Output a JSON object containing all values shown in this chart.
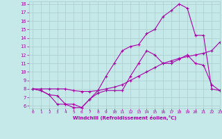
{
  "xlabel": "Windchill (Refroidissement éolien,°C)",
  "bg_color": "#c5e8e8",
  "grid_color": "#aacccc",
  "line_color": "#aa00aa",
  "xlim": [
    -0.5,
    23
  ],
  "ylim": [
    5.7,
    18.3
  ],
  "yticks": [
    6,
    7,
    8,
    9,
    10,
    11,
    12,
    13,
    14,
    15,
    16,
    17,
    18
  ],
  "xticks": [
    0,
    1,
    2,
    3,
    4,
    5,
    6,
    7,
    8,
    9,
    10,
    11,
    12,
    13,
    14,
    15,
    16,
    17,
    18,
    19,
    20,
    21,
    22,
    23
  ],
  "line1_x": [
    0,
    1,
    2,
    3,
    4,
    5,
    6,
    7,
    8,
    9,
    10,
    11,
    12,
    13,
    14,
    15,
    16,
    17,
    18,
    19,
    20,
    21,
    22,
    23
  ],
  "line1_y": [
    8.0,
    7.8,
    7.3,
    7.2,
    6.2,
    6.2,
    5.8,
    6.8,
    7.5,
    7.8,
    7.8,
    7.8,
    9.5,
    11.0,
    12.5,
    12.0,
    11.0,
    11.0,
    11.5,
    12.0,
    11.0,
    10.8,
    8.5,
    7.8
  ],
  "line2_x": [
    0,
    1,
    2,
    3,
    4,
    5,
    6,
    7,
    8,
    9,
    10,
    11,
    12,
    13,
    14,
    15,
    16,
    17,
    18,
    19,
    20,
    21,
    22,
    23
  ],
  "line2_y": [
    8.0,
    8.0,
    8.0,
    8.0,
    8.0,
    7.8,
    7.7,
    7.7,
    7.8,
    8.0,
    8.2,
    8.5,
    9.0,
    9.5,
    10.0,
    10.5,
    11.0,
    11.3,
    11.6,
    11.8,
    12.0,
    12.2,
    12.5,
    13.5
  ],
  "line3_x": [
    0,
    1,
    2,
    3,
    4,
    5,
    6,
    7,
    8,
    9,
    10,
    11,
    12,
    13,
    14,
    15,
    16,
    17,
    18,
    19,
    20,
    21,
    22,
    23
  ],
  "line3_y": [
    8.0,
    7.8,
    7.3,
    6.2,
    6.2,
    5.8,
    5.8,
    6.8,
    7.8,
    9.5,
    11.0,
    12.5,
    13.0,
    13.2,
    14.5,
    15.0,
    16.5,
    17.2,
    18.0,
    17.5,
    14.3,
    14.3,
    8.0,
    7.8
  ]
}
